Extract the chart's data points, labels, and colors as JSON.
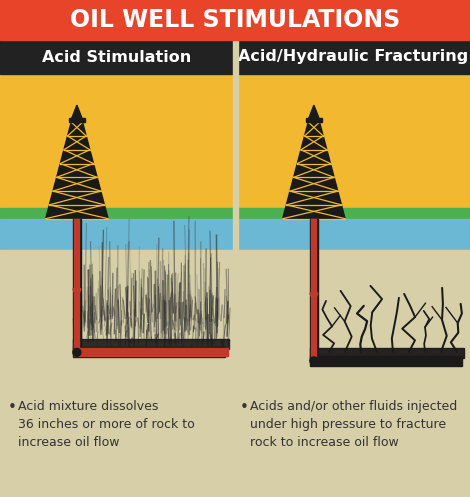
{
  "title": "OIL WELL STIMULATIONS",
  "title_bg": "#E8442A",
  "title_color": "#FFFFFF",
  "title_fontsize": 17,
  "panel_bg": "#D6CFA8",
  "header_bg": "#222222",
  "left_title": "Acid Stimulation",
  "right_title": "Acid/Hydraulic Fracturing",
  "subtitle_color": "#FFFFFF",
  "subtitle_fontsize": 11.5,
  "sky_color": "#F2B830",
  "grass_color": "#4CAF50",
  "water_color": "#6BB8D4",
  "ground_color": "#D6CFA8",
  "pipe_dark": "#1A1A1A",
  "pipe_red": "#C0392B",
  "left_bullet": "Acid mixture dissolves\n36 inches or more of rock to\nincrease oil flow",
  "right_bullet": "Acids and/or other fluids injected\nunder high pressure to fracture\nrock to increase oil flow",
  "bullet_fontsize": 9,
  "text_color": "#333333"
}
